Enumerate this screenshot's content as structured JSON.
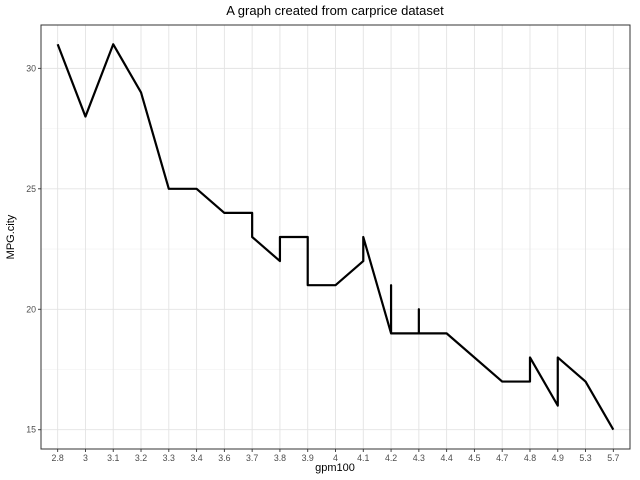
{
  "chart_data": {
    "type": "line",
    "title": "A graph created from carprice dataset",
    "xlabel": "gpm100",
    "ylabel": "MPG.city",
    "categories": [
      "2.8",
      "3",
      "3.1",
      "3.2",
      "3.3",
      "3.4",
      "3.6",
      "3.7",
      "3.8",
      "3.9",
      "4",
      "4.1",
      "4.2",
      "4.3",
      "4.4",
      "4.5",
      "4.7",
      "4.8",
      "4.9",
      "5.3",
      "5.7"
    ],
    "ylim": [
      14.2,
      31.8
    ],
    "y_ticks": [
      15,
      20,
      25,
      30
    ],
    "y_tick_labels": [
      "15",
      "20",
      "25",
      "30"
    ],
    "grid": true,
    "line_color": "#000000",
    "series": [
      {
        "points": [
          [
            "2.8",
            31
          ],
          [
            "3",
            28
          ],
          [
            "3.1",
            31
          ],
          [
            "3.2",
            29
          ],
          [
            "3.3",
            25
          ],
          [
            "3.4",
            25
          ],
          [
            "3.6",
            24
          ],
          [
            "3.7",
            24
          ],
          [
            "3.7",
            23
          ],
          [
            "3.8",
            22
          ],
          [
            "3.8",
            23
          ],
          [
            "3.9",
            23
          ],
          [
            "3.9",
            21
          ],
          [
            "4",
            21
          ],
          [
            "4.1",
            22
          ],
          [
            "4.1",
            23
          ],
          [
            "4.2",
            19
          ],
          [
            "4.2",
            21
          ],
          [
            "4.2",
            19
          ],
          [
            "4.3",
            19
          ],
          [
            "4.3",
            20
          ],
          [
            "4.3",
            19
          ],
          [
            "4.4",
            19
          ],
          [
            "4.7",
            17
          ],
          [
            "4.8",
            17
          ],
          [
            "4.8",
            18
          ],
          [
            "4.9",
            16
          ],
          [
            "4.9",
            18
          ],
          [
            "5.3",
            17
          ],
          [
            "5.7",
            15
          ]
        ]
      }
    ]
  }
}
